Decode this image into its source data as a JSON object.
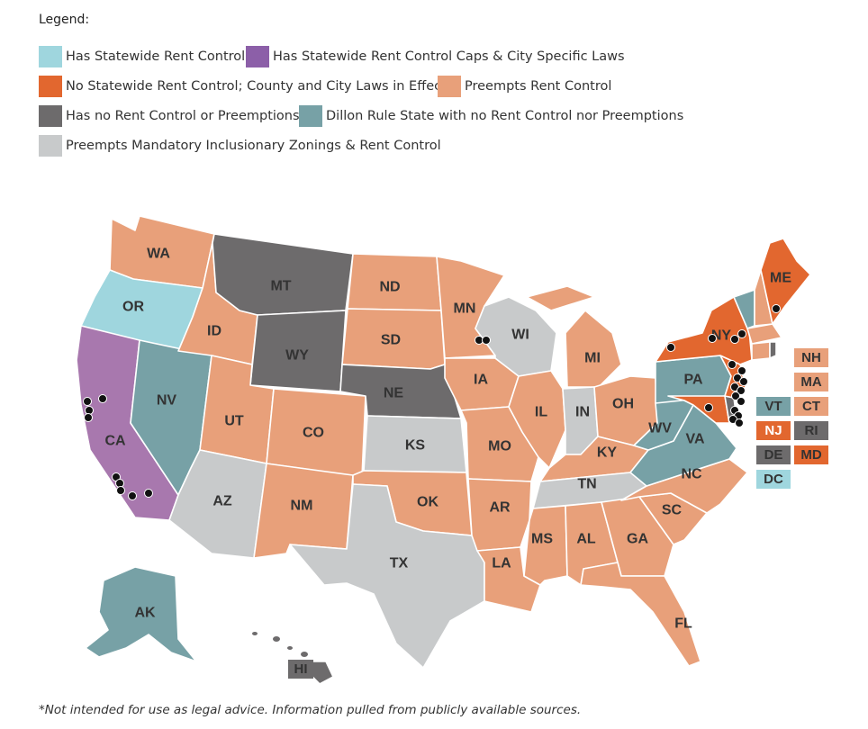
{
  "legend": {
    "title": "Legend:",
    "items": [
      {
        "label": "Has Statewide Rent Control",
        "color": "#9fd6de"
      },
      {
        "label": "Has Statewide Rent Control Caps & City Specific Laws",
        "color": "#8c5fa8"
      },
      {
        "label": "No Statewide Rent Control; County and City Laws in Effect",
        "color": "#e2672f"
      },
      {
        "label": "Preempts Rent Control",
        "color": "#e8a07a"
      },
      {
        "label": "Has no Rent Control or Preemptions",
        "color": "#6d6b6c"
      },
      {
        "label": "Dillon Rule State with no Rent Control nor Preemptions",
        "color": "#77a1a6"
      },
      {
        "label": "Preempts Mandatory Inclusionary Zonings & Rent Control",
        "color": "#c8cacb"
      }
    ]
  },
  "states": {
    "WA": "WA",
    "OR": "OR",
    "CA": "CA",
    "NV": "NV",
    "ID": "ID",
    "MT": "MT",
    "WY": "WY",
    "UT": "UT",
    "AZ": "AZ",
    "CO": "CO",
    "NM": "NM",
    "ND": "ND",
    "SD": "SD",
    "NE": "NE",
    "KS": "KS",
    "OK": "OK",
    "TX": "TX",
    "MN": "MN",
    "IA": "IA",
    "MO": "MO",
    "AR": "AR",
    "LA": "LA",
    "WI": "WI",
    "IL": "IL",
    "MS": "MS",
    "MI": "MI",
    "IN": "IN",
    "KY": "KY",
    "TN": "TN",
    "AL": "AL",
    "OH": "OH",
    "GA": "GA",
    "FL": "FL",
    "SC": "SC",
    "NC": "NC",
    "VA": "VA",
    "WV": "WV",
    "PA": "PA",
    "NY": "NY",
    "ME": "ME",
    "AK": "AK",
    "HI": "HI"
  },
  "badges": {
    "NH": "NH",
    "MA": "MA",
    "VT": "VT",
    "CT": "CT",
    "NJ": "NJ",
    "RI": "RI",
    "DE": "DE",
    "MD": "MD",
    "DC": "DC"
  },
  "disclaimer": "*Not intended for use as legal advice. Information pulled from publicly available sources."
}
